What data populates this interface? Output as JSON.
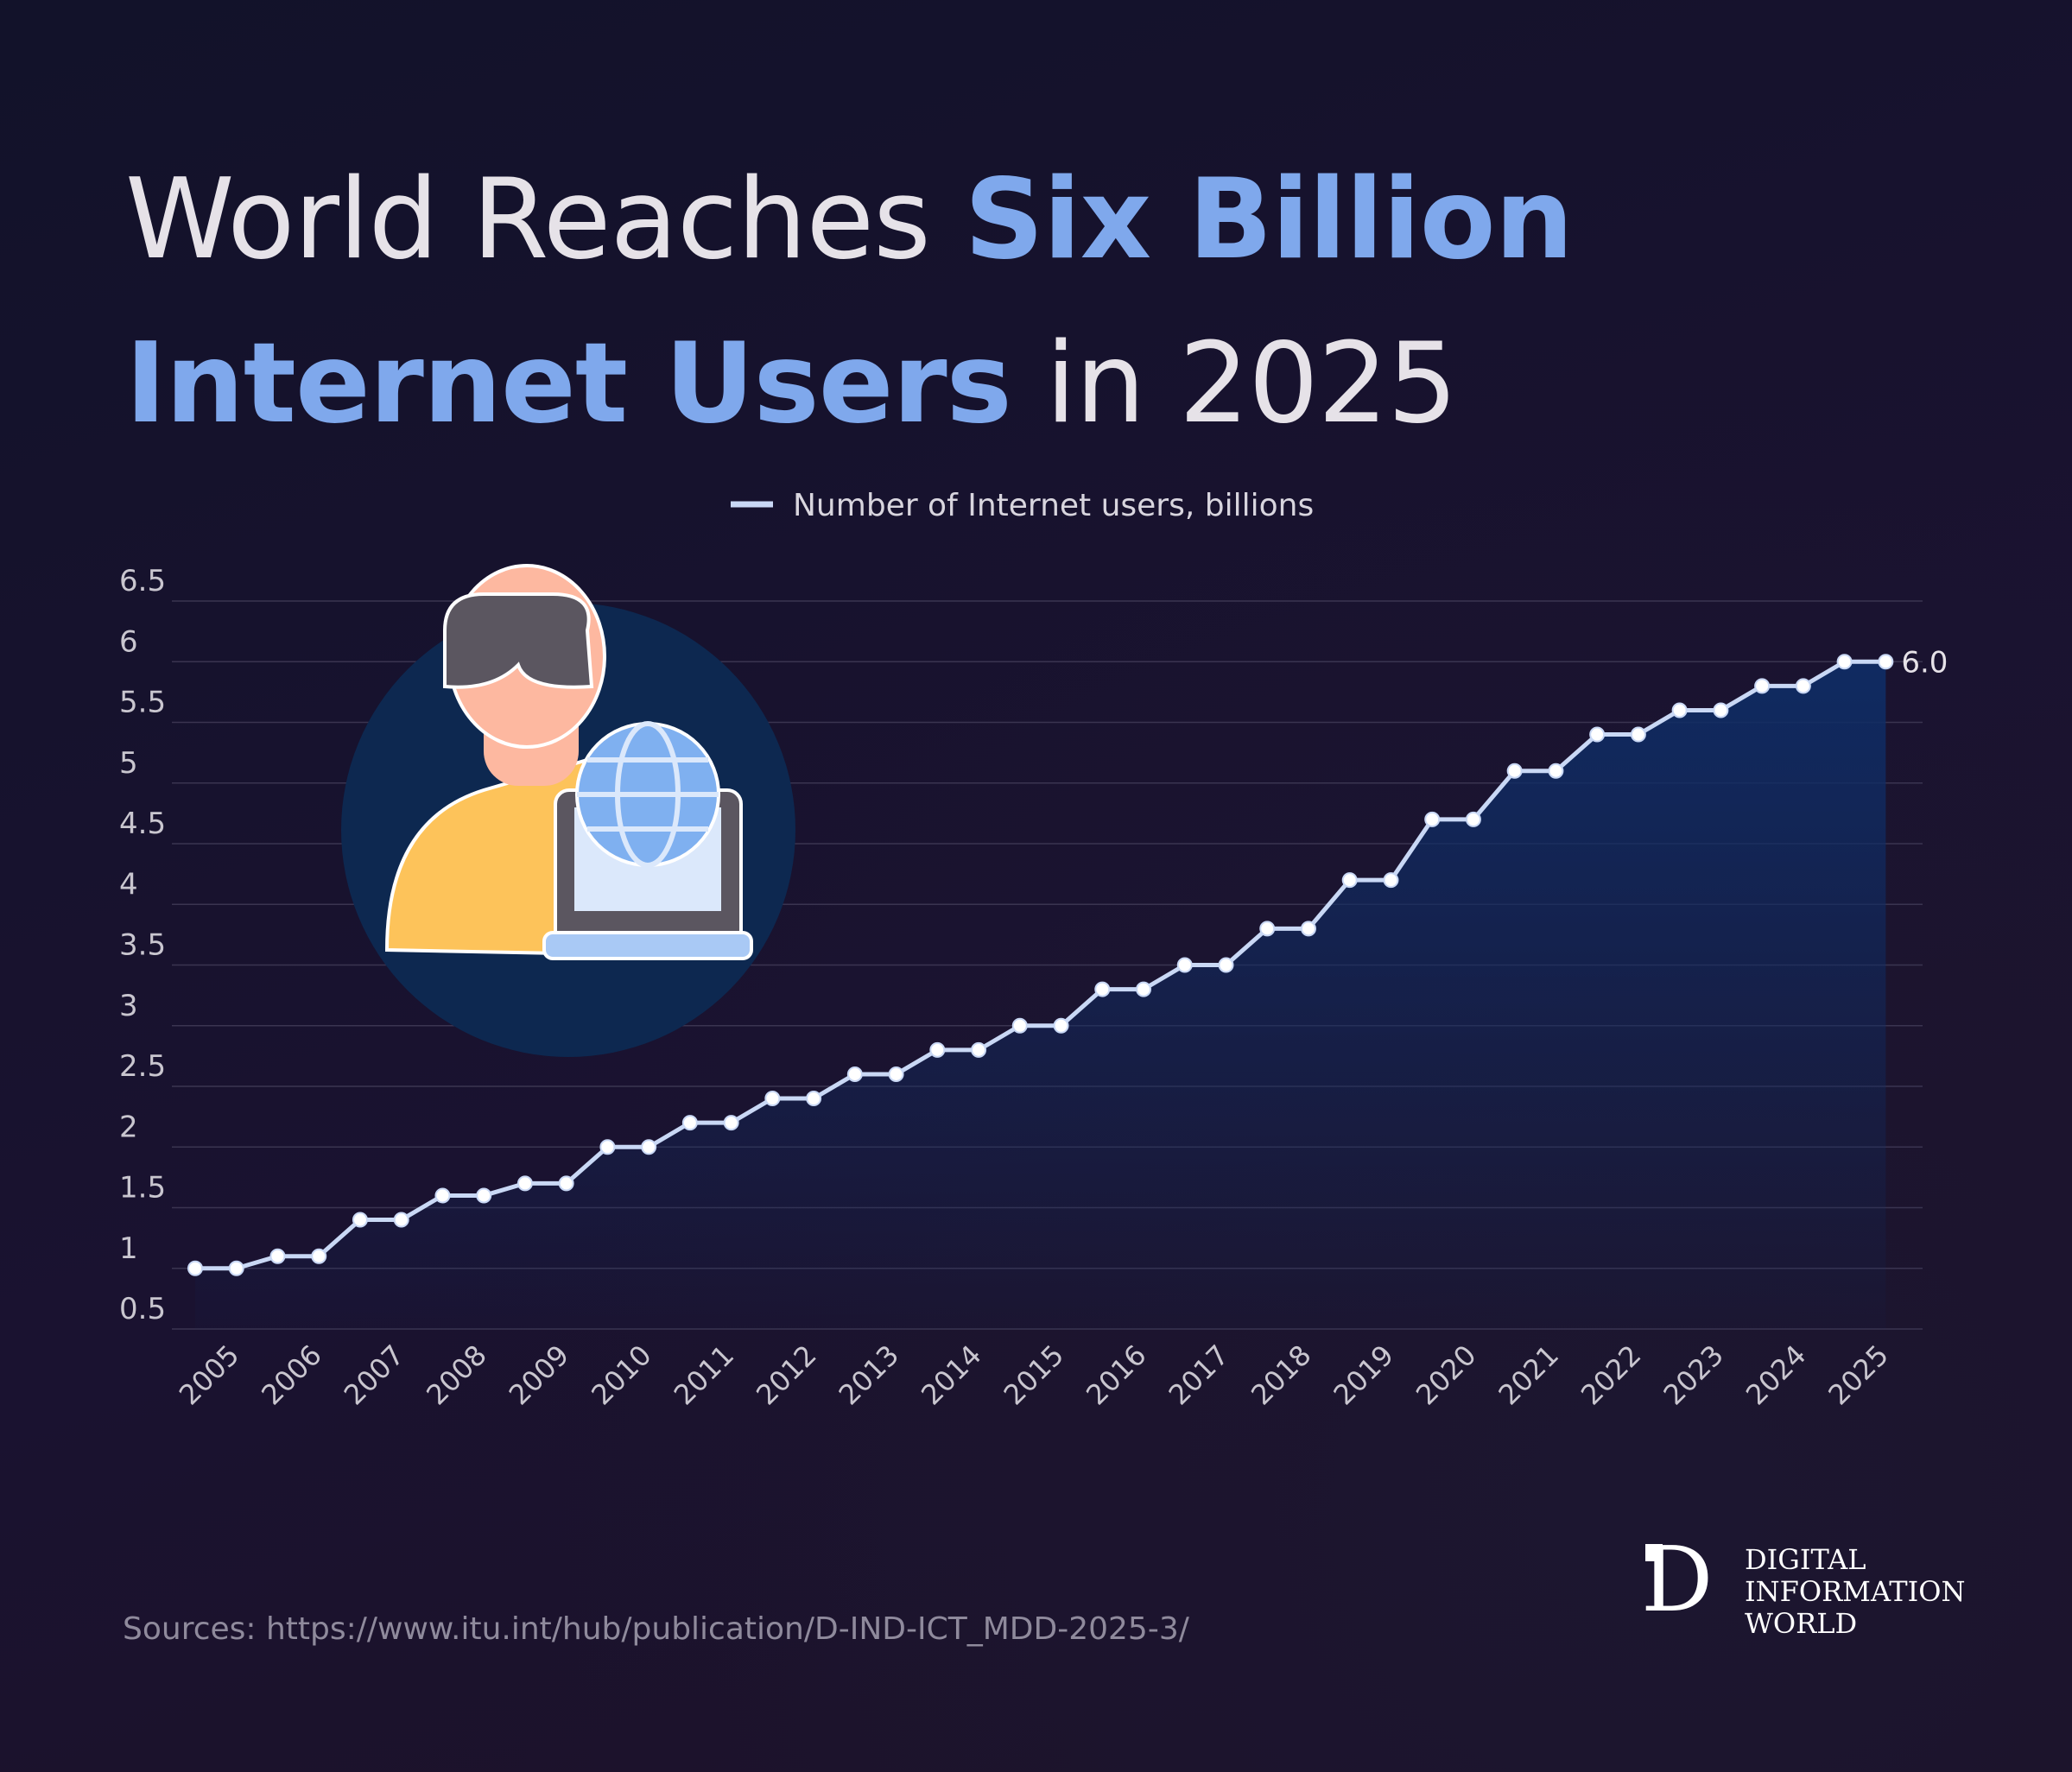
{
  "chart_data": {
    "type": "line",
    "title": [
      {
        "text": "World Reaches",
        "color": "#e6e2e8"
      },
      {
        "text": "Six Billion Internet Users",
        "color": "#7fa8ec"
      },
      {
        "text": "in 2025",
        "color": "#e6e2e8"
      }
    ],
    "categories": [
      "2005",
      null,
      "2006",
      null,
      "2007",
      null,
      "2008",
      null,
      "2009",
      null,
      "2010",
      null,
      "2011",
      null,
      "2012",
      null,
      "2013",
      null,
      "2014",
      null,
      "2015",
      null,
      "2016",
      null,
      "2017",
      null,
      "2018",
      null,
      "2019",
      null,
      "2020",
      null,
      "2021",
      null,
      "2022",
      null,
      "2023",
      null,
      "2024",
      null,
      "2025",
      null
    ],
    "series": [
      {
        "name": "Number of Internet users, billions",
        "color": "#c9d8f5",
        "values": [
          1.0,
          1.0,
          1.1,
          1.1,
          1.4,
          1.4,
          1.6,
          1.6,
          1.7,
          1.7,
          2.0,
          2.0,
          2.2,
          2.2,
          2.4,
          2.4,
          2.6,
          2.6,
          2.8,
          2.8,
          3.0,
          3.0,
          3.3,
          3.3,
          3.5,
          3.5,
          3.8,
          3.8,
          4.2,
          4.2,
          4.7,
          4.7,
          5.1,
          5.1,
          5.4,
          5.4,
          5.6,
          5.6,
          5.8,
          5.8,
          6.0,
          6.0
        ],
        "value_labels": [
          null,
          null,
          null,
          null,
          null,
          null,
          null,
          null,
          null,
          null,
          null,
          null,
          null,
          null,
          null,
          null,
          null,
          null,
          null,
          null,
          null,
          null,
          null,
          null,
          null,
          null,
          null,
          null,
          null,
          null,
          null,
          null,
          null,
          null,
          null,
          null,
          null,
          null,
          null,
          null,
          null,
          "6.0"
        ]
      }
    ],
    "ylim": [
      0.5,
      6.5
    ],
    "yticks": [
      0.5,
      1,
      1.5,
      2,
      2.5,
      3,
      3.5,
      4,
      4.5,
      5,
      5.5,
      6,
      6.5
    ],
    "grid": true,
    "legend": "top",
    "source": "Sources: https://www.itu.int/hub/publication/D-IND-ICT_MDD-2025-3/",
    "logo": {
      "mark": "D",
      "lines": [
        "DIGITAL",
        "INFORMATION",
        "WORLD"
      ]
    }
  }
}
